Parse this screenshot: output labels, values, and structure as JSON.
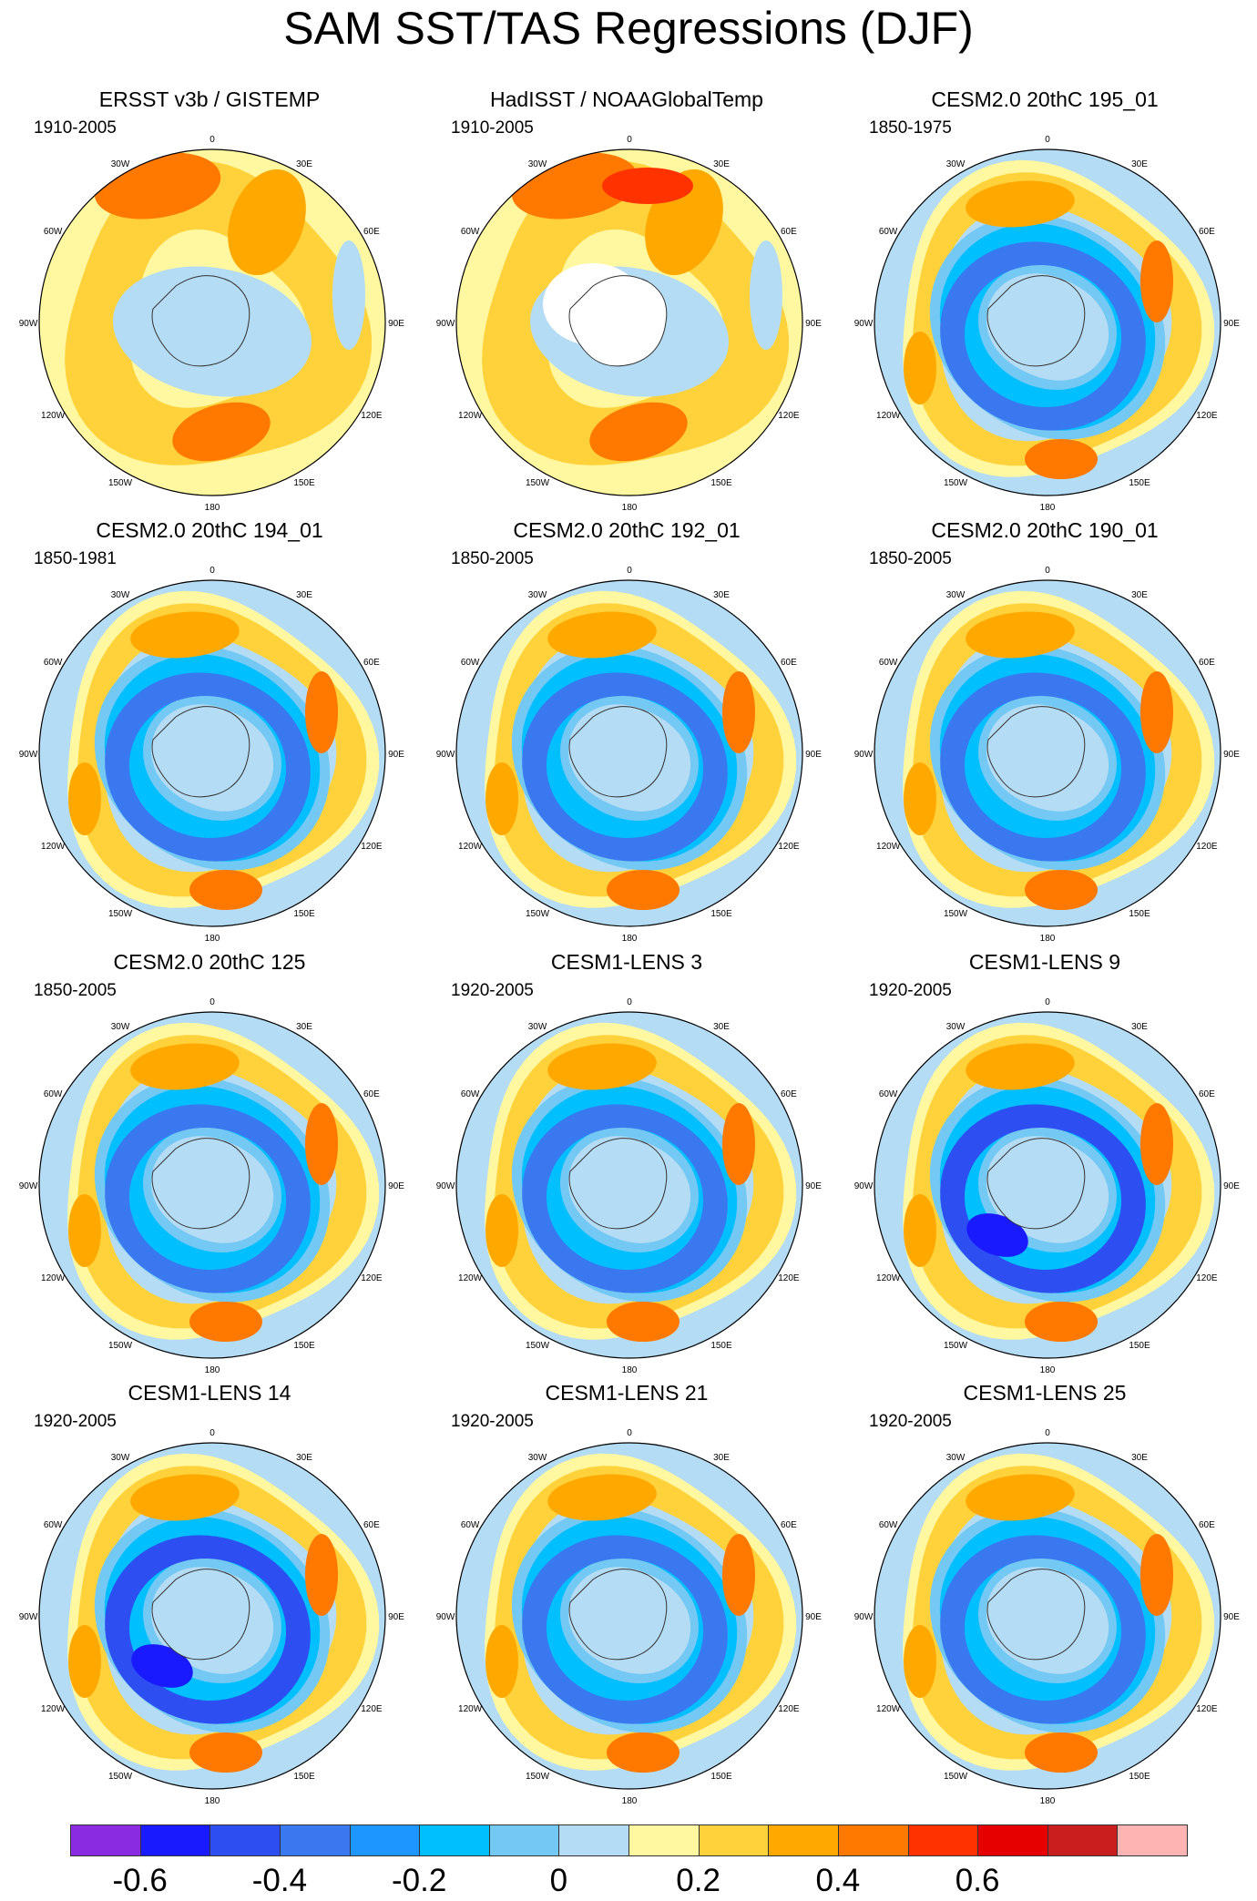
{
  "title": "SAM SST/TAS Regressions (DJF)",
  "lon_labels": [
    "0",
    "30E",
    "60E",
    "90E",
    "120E",
    "150E",
    "180",
    "150W",
    "120W",
    "90W",
    "60W",
    "30W"
  ],
  "panels": [
    {
      "title": "ERSST v3b / GISTEMP",
      "period": "1910-2005",
      "pattern": "obs1"
    },
    {
      "title": "HadISST / NOAAGlobalTemp",
      "period": "1910-2005",
      "pattern": "obs2"
    },
    {
      "title": "CESM2.0 20thC 195_01",
      "period": "1850-1975",
      "pattern": "model"
    },
    {
      "title": "CESM2.0 20thC 194_01",
      "period": "1850-1981",
      "pattern": "model"
    },
    {
      "title": "CESM2.0 20thC 192_01",
      "period": "1850-2005",
      "pattern": "model"
    },
    {
      "title": "CESM2.0 20thC 190_01",
      "period": "1850-2005",
      "pattern": "model"
    },
    {
      "title": "CESM2.0 20thC 125",
      "period": "1850-2005",
      "pattern": "model"
    },
    {
      "title": "CESM1-LENS 3",
      "period": "1920-2005",
      "pattern": "model"
    },
    {
      "title": "CESM1-LENS 9",
      "period": "1920-2005",
      "pattern": "model-strong"
    },
    {
      "title": "CESM1-LENS 14",
      "period": "1920-2005",
      "pattern": "model-strong"
    },
    {
      "title": "CESM1-LENS 21",
      "period": "1920-2005",
      "pattern": "model"
    },
    {
      "title": "CESM1-LENS 25",
      "period": "1920-2005",
      "pattern": "model"
    }
  ],
  "colorbar": {
    "colors": [
      "#8a2be2",
      "#1a1aff",
      "#2d4ef0",
      "#3a78f0",
      "#1e96ff",
      "#00bfff",
      "#74c8f4",
      "#b4dcf4",
      "#fff8a0",
      "#ffd23c",
      "#ffa800",
      "#ff7800",
      "#ff3200",
      "#e60000",
      "#c81e1e",
      "#ffb4b4"
    ],
    "labels": [
      "-0.6",
      "-0.4",
      "-0.2",
      "0",
      "0.2",
      "0.4",
      "0.6"
    ]
  },
  "chart_data": {
    "type": "heatmap",
    "title": "SAM SST/TAS Regressions (DJF)",
    "projection": "south polar stereographic",
    "colorbar_levels": [
      -0.7,
      -0.6,
      -0.5,
      -0.4,
      -0.3,
      -0.2,
      -0.1,
      0,
      0.1,
      0.2,
      0.3,
      0.4,
      0.5,
      0.6,
      0.7
    ],
    "colorbar_ticks": [
      -0.6,
      -0.4,
      -0.2,
      0,
      0.2,
      0.4,
      0.6
    ],
    "panel_count": 12,
    "note_values": "approximate regression fields reproduced schematically"
  }
}
